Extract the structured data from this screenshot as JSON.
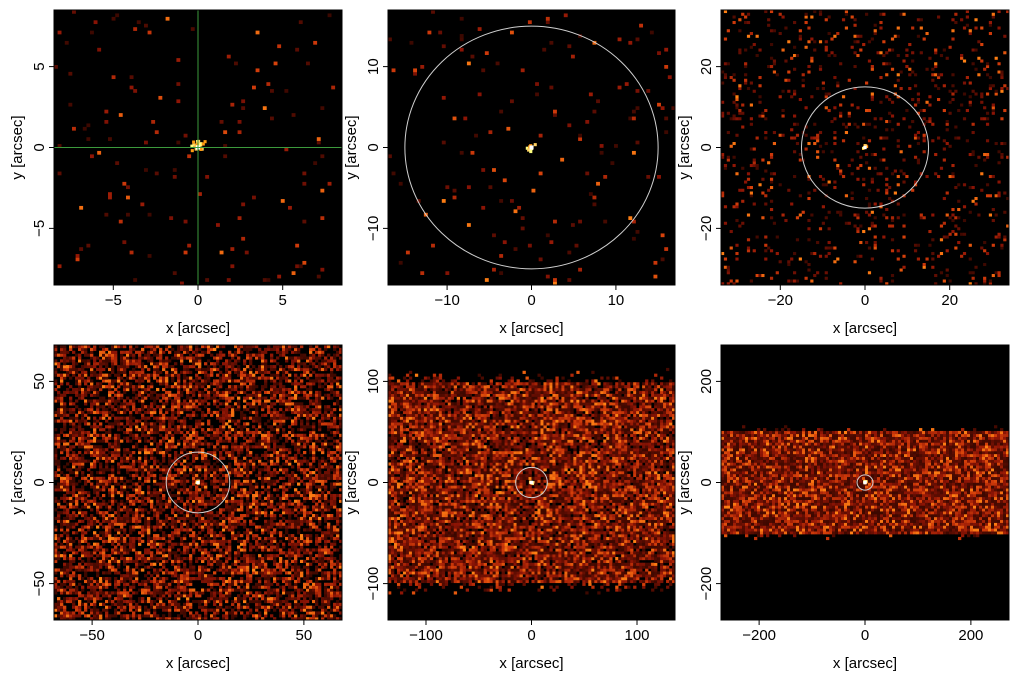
{
  "chart_data": [
    {
      "type": "heatmap",
      "xlabel": "x [arcsec]",
      "ylabel": "y [arcsec]",
      "xlim": [
        -8.5,
        8.5
      ],
      "ylim": [
        -8.5,
        8.5
      ],
      "xticks": [
        -5,
        0,
        5
      ],
      "yticks": [
        -5,
        0,
        5
      ],
      "tick_labels_x": [
        "−5",
        "0",
        "5"
      ],
      "tick_labels_y": [
        "−5",
        "0",
        "5"
      ],
      "background": "black",
      "crosshair": {
        "x": 0,
        "y": 0,
        "color": "#3c9a3c"
      },
      "circle_radius": null,
      "band_half_height": null,
      "bins": 80,
      "density": 0.02,
      "source_cluster_radius": 0.6
    },
    {
      "type": "heatmap",
      "xlabel": "x [arcsec]",
      "ylabel": "y [arcsec]",
      "xlim": [
        -17,
        17
      ],
      "ylim": [
        -17,
        17
      ],
      "xticks": [
        -10,
        0,
        10
      ],
      "yticks": [
        -10,
        0,
        10
      ],
      "tick_labels_x": [
        "−10",
        "0",
        "10"
      ],
      "tick_labels_y": [
        "−10",
        "0",
        "10"
      ],
      "background": "black",
      "crosshair": null,
      "circle_radius": 15,
      "band_half_height": null,
      "bins": 80,
      "density": 0.02,
      "source_cluster_radius": 0.6
    },
    {
      "type": "heatmap",
      "xlabel": "x [arcsec]",
      "ylabel": "y [arcsec]",
      "xlim": [
        -34,
        34
      ],
      "ylim": [
        -34,
        34
      ],
      "xticks": [
        -20,
        0,
        20
      ],
      "yticks": [
        -20,
        0,
        20
      ],
      "tick_labels_x": [
        "−20",
        "0",
        "20"
      ],
      "tick_labels_y": [
        "−20",
        "0",
        "20"
      ],
      "background": "black",
      "crosshair": null,
      "circle_radius": 15,
      "band_half_height": null,
      "bins": 100,
      "density": 0.09,
      "source_cluster_radius": 0.8
    },
    {
      "type": "heatmap",
      "xlabel": "x [arcsec]",
      "ylabel": "y [arcsec]",
      "xlim": [
        -68,
        68
      ],
      "ylim": [
        -68,
        68
      ],
      "xticks": [
        -50,
        0,
        50
      ],
      "yticks": [
        -50,
        0,
        50
      ],
      "tick_labels_x": [
        "−50",
        "0",
        "50"
      ],
      "tick_labels_y": [
        "−50",
        "0",
        "50"
      ],
      "background": "black",
      "crosshair": null,
      "circle_radius": 15,
      "band_half_height": null,
      "bins": 96,
      "density": 0.62,
      "source_cluster_radius": 1.0
    },
    {
      "type": "heatmap",
      "xlabel": "x [arcsec]",
      "ylabel": "y [arcsec]",
      "xlim": [
        -136,
        136
      ],
      "ylim": [
        -136,
        136
      ],
      "xticks": [
        -100,
        0,
        100
      ],
      "yticks": [
        -100,
        0,
        100
      ],
      "tick_labels_x": [
        "−100",
        "0",
        "100"
      ],
      "tick_labels_y": [
        "−100",
        "0",
        "100"
      ],
      "background": "black",
      "crosshair": null,
      "circle_radius": 15,
      "band_half_height": 100,
      "bins": 96,
      "density": 0.9,
      "source_cluster_radius": 2.0
    },
    {
      "type": "heatmap",
      "xlabel": "x [arcsec]",
      "ylabel": "y [arcsec]",
      "xlim": [
        -272,
        272
      ],
      "ylim": [
        -272,
        272
      ],
      "xticks": [
        -200,
        0,
        200
      ],
      "yticks": [
        -200,
        0,
        200
      ],
      "tick_labels_x": [
        "−200",
        "0",
        "200"
      ],
      "tick_labels_y": [
        "−200",
        "0",
        "200"
      ],
      "background": "black",
      "crosshair": null,
      "circle_radius": 15,
      "band_half_height": 100,
      "bins": 96,
      "density": 1.0,
      "source_cluster_radius": 4.0
    }
  ],
  "colors": {
    "background": "#000000",
    "heat_low": "#4a0a00",
    "heat_mid": "#c2300a",
    "heat_high": "#ff9a10",
    "heat_peak": "#ffff80",
    "circle": "#d0d0d0",
    "crosshair": "#3c9a3c",
    "source": "#ffffff"
  }
}
